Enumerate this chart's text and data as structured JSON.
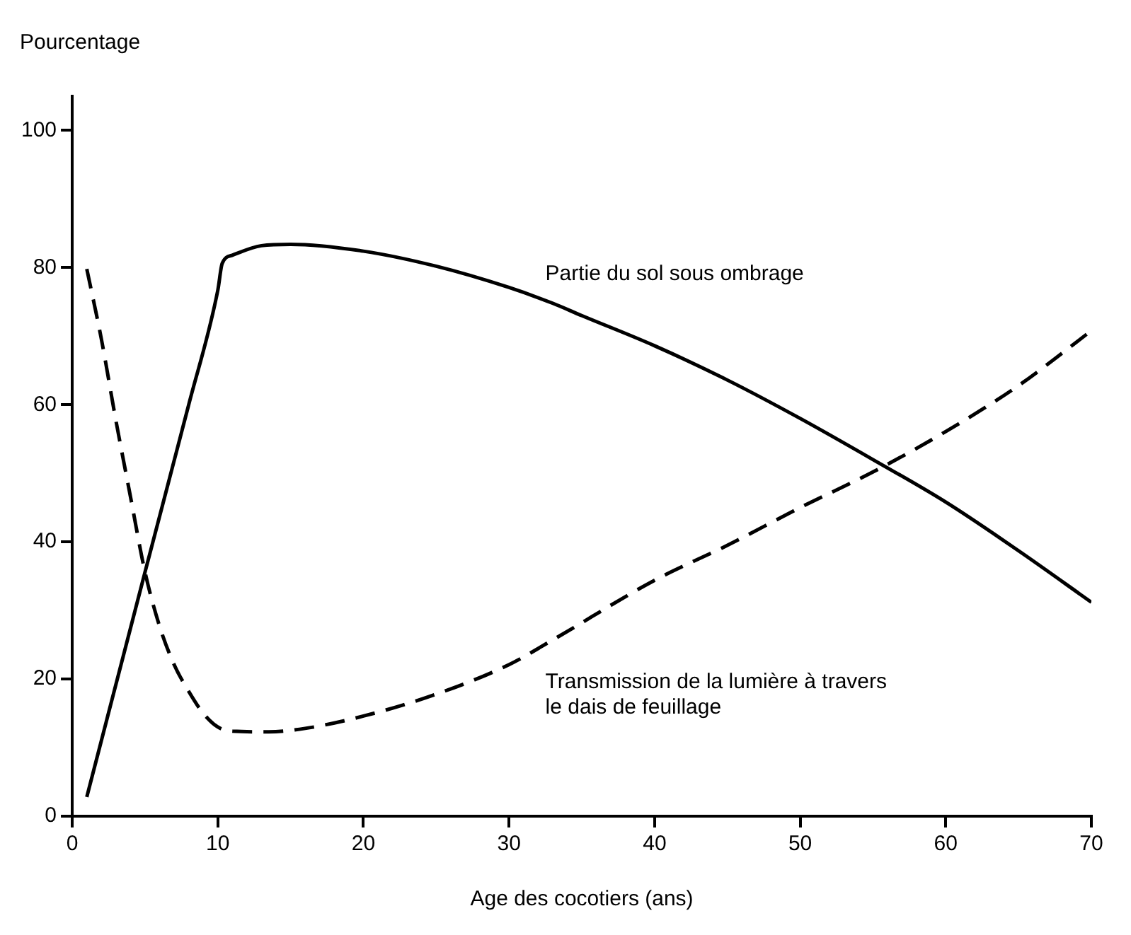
{
  "chart_data": {
    "type": "line",
    "xlabel": "Age des cocotiers (ans)",
    "ylabel": "Pourcentage",
    "xlim": [
      0,
      70
    ],
    "xticks": [
      0,
      10,
      20,
      30,
      40,
      50,
      60,
      70
    ],
    "ylim": [
      0,
      105
    ],
    "yticks": [
      0,
      20,
      40,
      60,
      80,
      100
    ],
    "grid": false,
    "legend": false,
    "marker": "none",
    "series": [
      {
        "name": "Partie du sol sous ombrage",
        "color": "#000000",
        "line_style": "solid",
        "x": [
          1,
          5,
          8,
          10,
          10.3,
          11,
          13,
          15,
          20,
          25,
          30,
          33,
          35,
          40,
          45,
          50,
          55,
          60,
          65,
          70
        ],
        "values": [
          2.8,
          35.6,
          60,
          76.7,
          80.6,
          81.8,
          83.2,
          83.4,
          82.4,
          80.2,
          77.1,
          74.8,
          73,
          68.6,
          63.6,
          58,
          52,
          45.8,
          38.7,
          31.2
        ]
      },
      {
        "name": "Transmission de la lumière à travers\nle dais de feuillage",
        "color": "#000000",
        "line_style": "dashed",
        "x": [
          1,
          2,
          3,
          4,
          5,
          6,
          7,
          8,
          9,
          10,
          11,
          13.5,
          16,
          20,
          25,
          30,
          33,
          40,
          45,
          50,
          55,
          60,
          65,
          70
        ],
        "values": [
          79.8,
          69.6,
          57.7,
          46.6,
          35.6,
          27.7,
          22.1,
          18.2,
          15,
          13,
          12.4,
          12.3,
          12.8,
          14.6,
          17.8,
          22.1,
          25.7,
          34.4,
          39.5,
          45,
          50.2,
          56.1,
          62.8,
          70.8
        ]
      }
    ]
  }
}
